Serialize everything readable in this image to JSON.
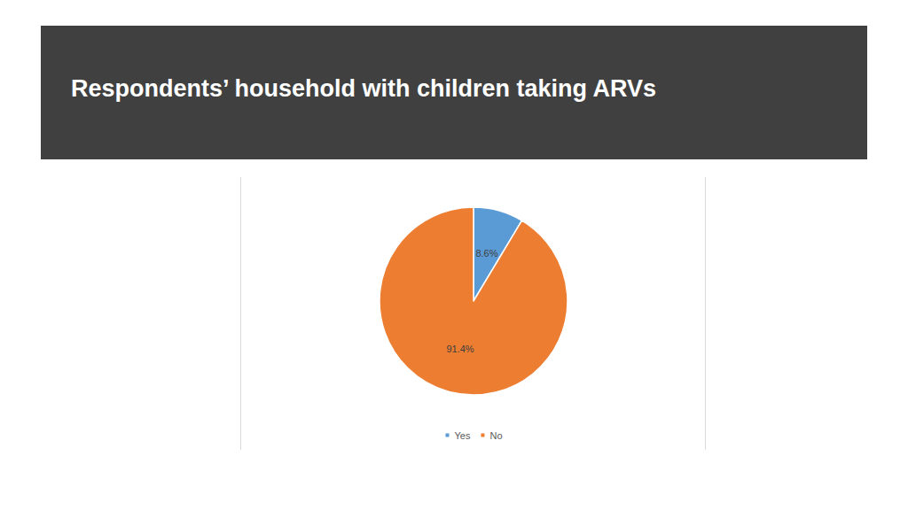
{
  "chart_data": {
    "type": "pie",
    "title": "Respondents’ household with children taking ARVs",
    "categories": [
      "Yes",
      "No"
    ],
    "values": [
      8.6,
      91.4
    ],
    "value_labels": [
      "8.6%",
      "91.4%"
    ],
    "colors": [
      "#5b9bd5",
      "#ed7d31"
    ],
    "data_labels": true,
    "legend": "bottom"
  }
}
